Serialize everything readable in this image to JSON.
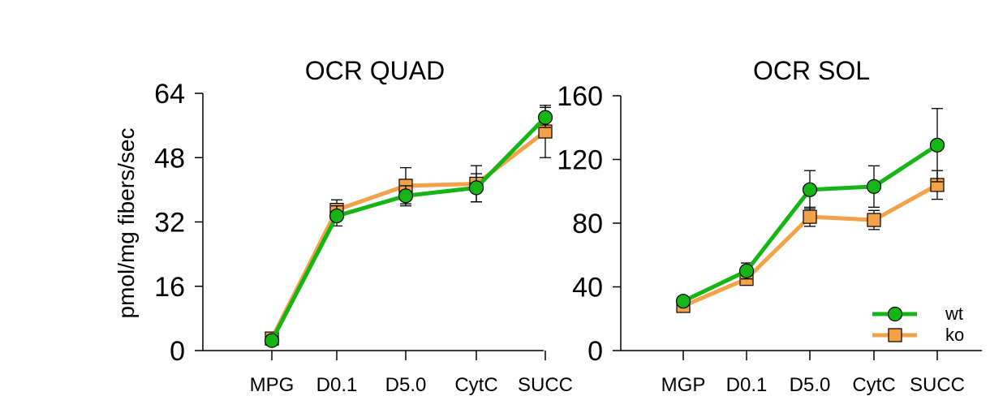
{
  "colors": {
    "wt": "#14b514",
    "ko": "#f4a24a",
    "axis": "#000000"
  },
  "y_axis_label": "pmol/mg fibers/sec",
  "legend": {
    "placement": "bottom-right of second chart",
    "items": [
      "wt",
      "ko"
    ]
  },
  "chart_data": [
    {
      "type": "line",
      "title": "OCR QUAD",
      "categories": [
        "MPG",
        "D0.1",
        "D5.0",
        "CytC",
        "SUCC"
      ],
      "ylabel": "pmol/mg fibers/sec",
      "ylim": [
        0,
        64
      ],
      "yticks": [
        0,
        16,
        32,
        48,
        64
      ],
      "series": [
        {
          "name": "wt",
          "values": [
            2.5,
            33.5,
            38.5,
            40.5,
            58
          ],
          "errors": [
            0.8,
            2.5,
            2.5,
            3.5,
            2.5
          ],
          "marker": "circle"
        },
        {
          "name": "ko",
          "values": [
            3.0,
            35.0,
            41.0,
            41.5,
            54.5
          ],
          "errors": [
            0.8,
            2.5,
            4.5,
            4.5,
            6.5
          ],
          "marker": "square"
        }
      ]
    },
    {
      "type": "line",
      "title": "OCR SOL",
      "categories": [
        "MGP",
        "D0.1",
        "D5.0",
        "CytC",
        "SUCC"
      ],
      "ylabel": "",
      "ylim": [
        0,
        160
      ],
      "yticks": [
        0,
        40,
        80,
        120,
        160
      ],
      "series": [
        {
          "name": "wt",
          "values": [
            31,
            50,
            101,
            103,
            129
          ],
          "errors": [
            2,
            5,
            12,
            13,
            23
          ],
          "marker": "circle"
        },
        {
          "name": "ko",
          "values": [
            28,
            45,
            84,
            82,
            104
          ],
          "errors": [
            2,
            3,
            6,
            6,
            9
          ],
          "marker": "square"
        }
      ]
    }
  ]
}
